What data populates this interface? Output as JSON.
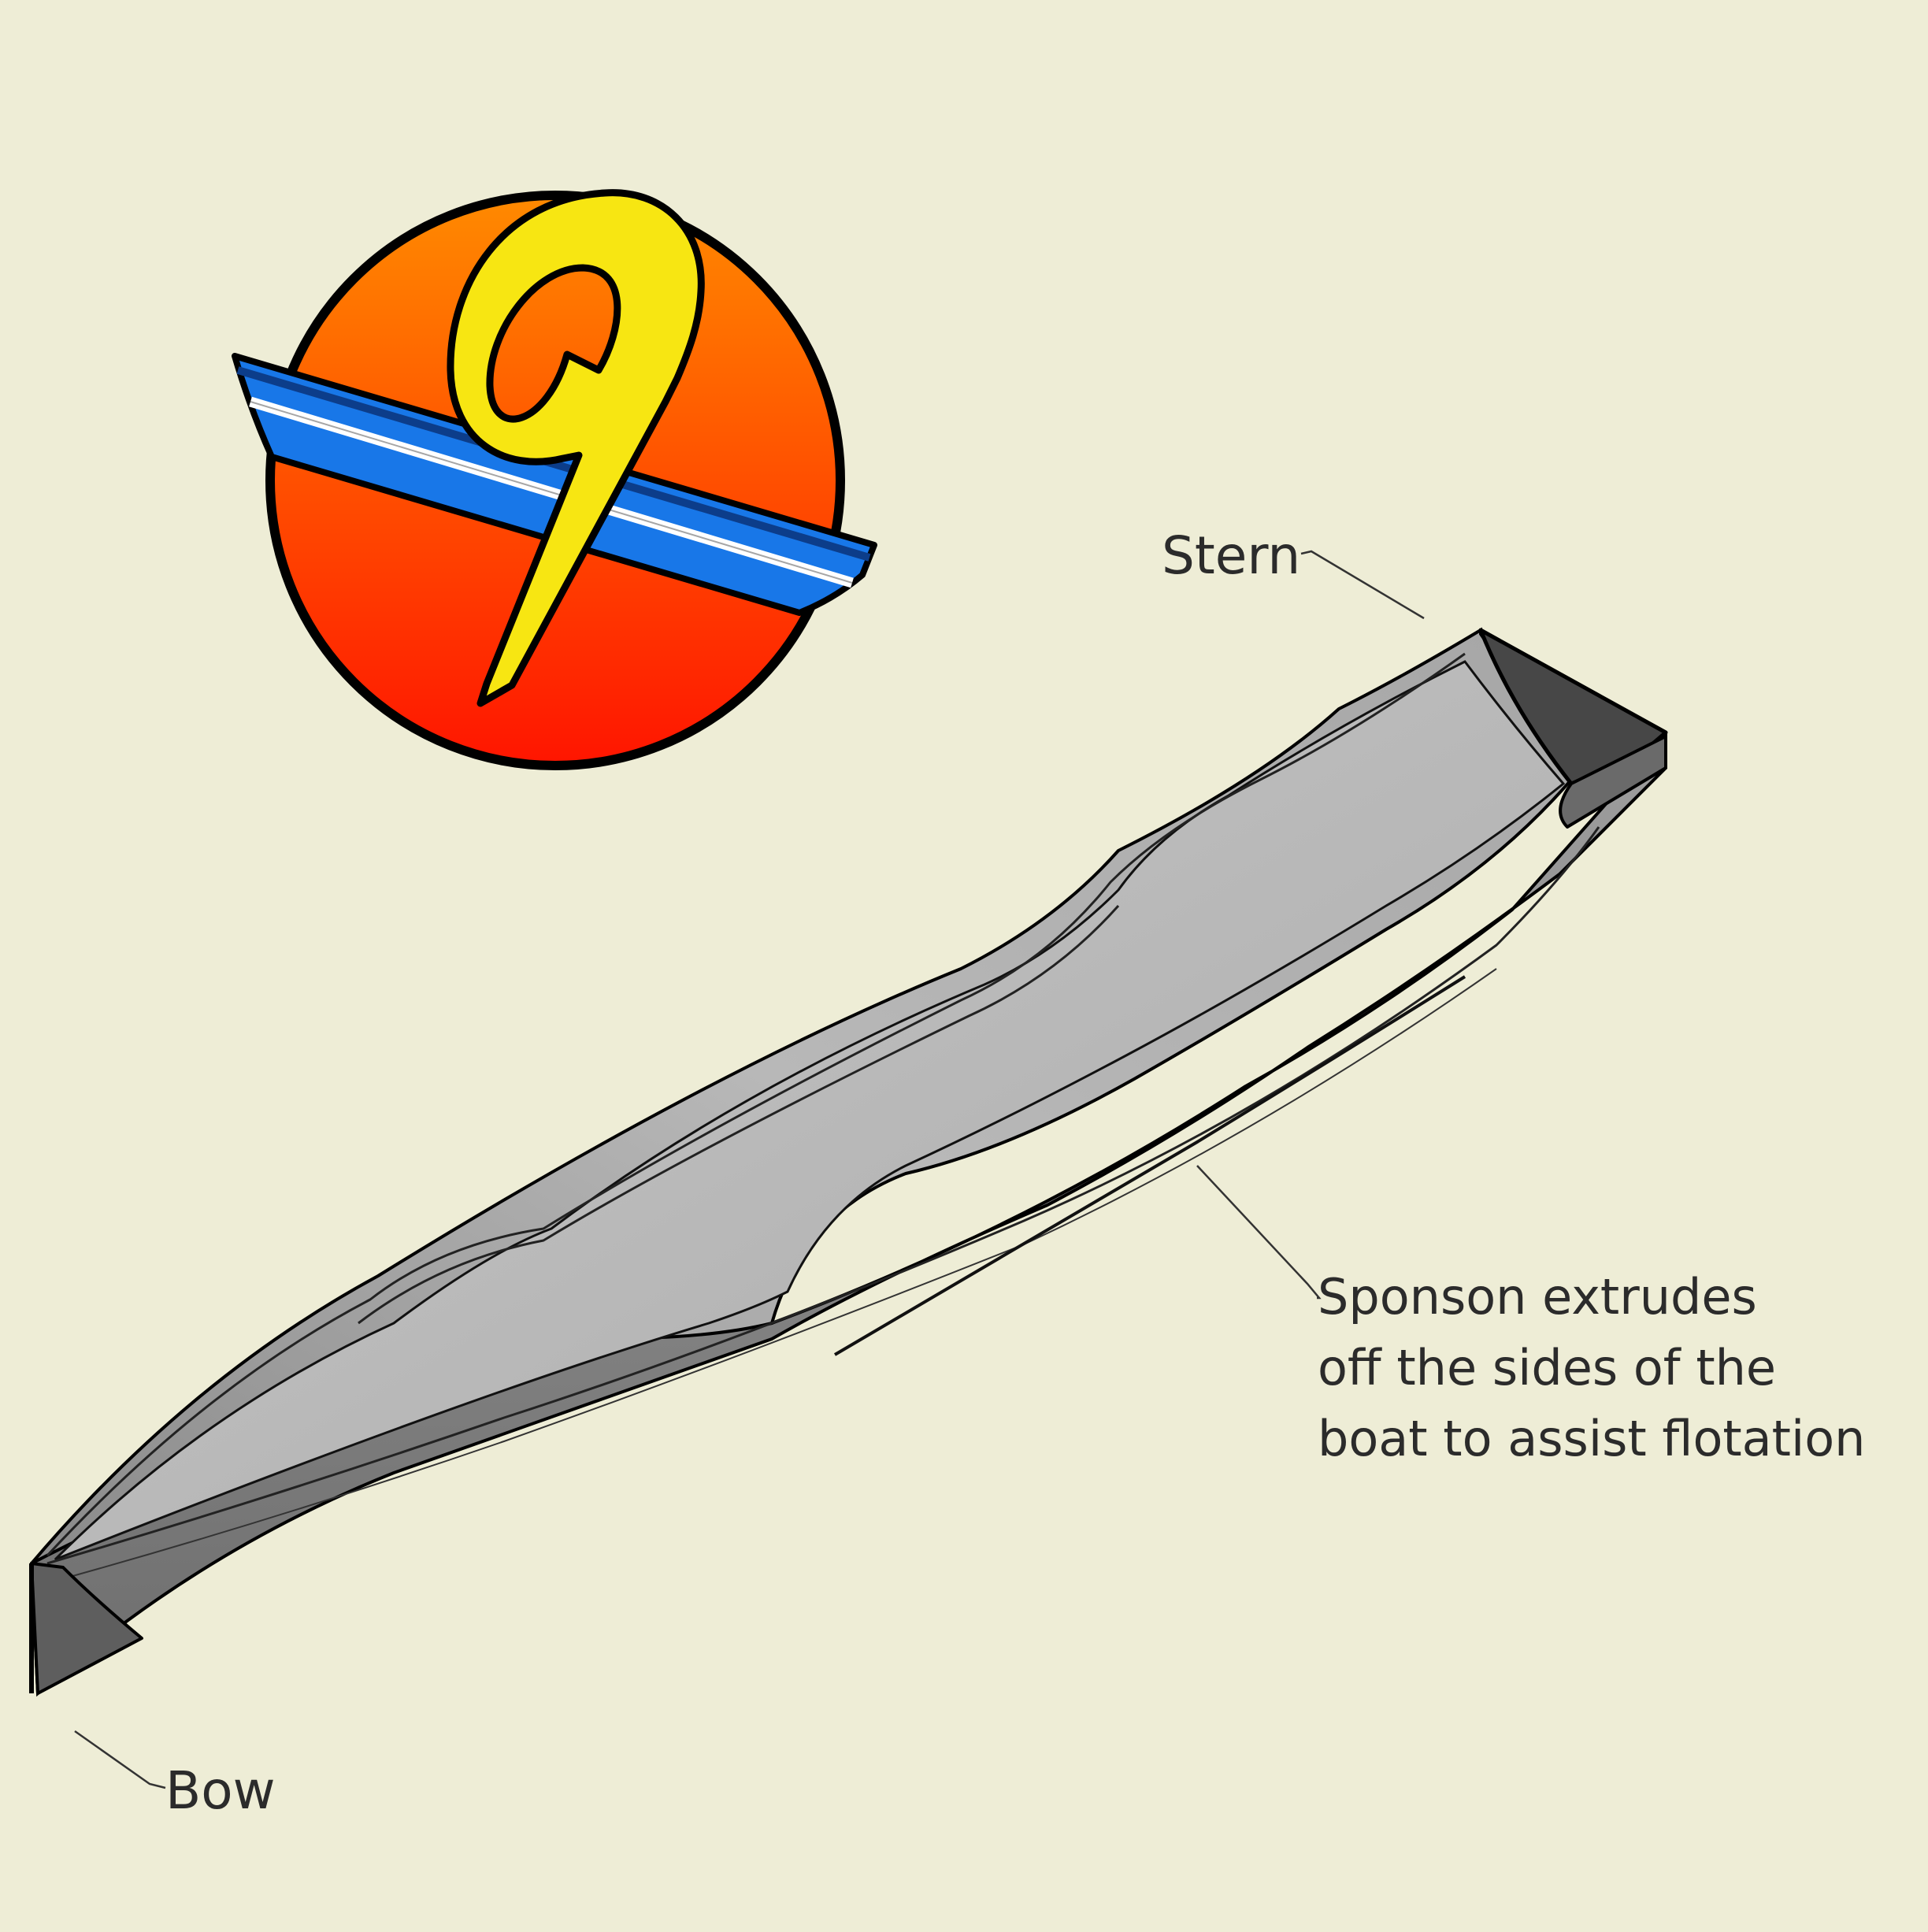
{
  "logo": {
    "text": "9",
    "icon": "number-nine-boat-logo-icon",
    "colors": {
      "disc_top": "#ff8a00",
      "disc_bottom": "#ff1500",
      "numeral": "#f7e612",
      "hull_band": "#1877e8",
      "hull_stripe": "#ffffff",
      "outline": "#000000"
    }
  },
  "labels": {
    "stern": "Stern",
    "bow": "Bow",
    "sponson": [
      "Sponson extrudes",
      "off the sides of the",
      "boat to assist flotation"
    ]
  },
  "colors": {
    "background": "#eeedd6",
    "hull_light": "#bdbdbd",
    "hull_mid": "#9a9a9a",
    "hull_dark": "#4a4a4a",
    "text": "#2b2b2b"
  }
}
